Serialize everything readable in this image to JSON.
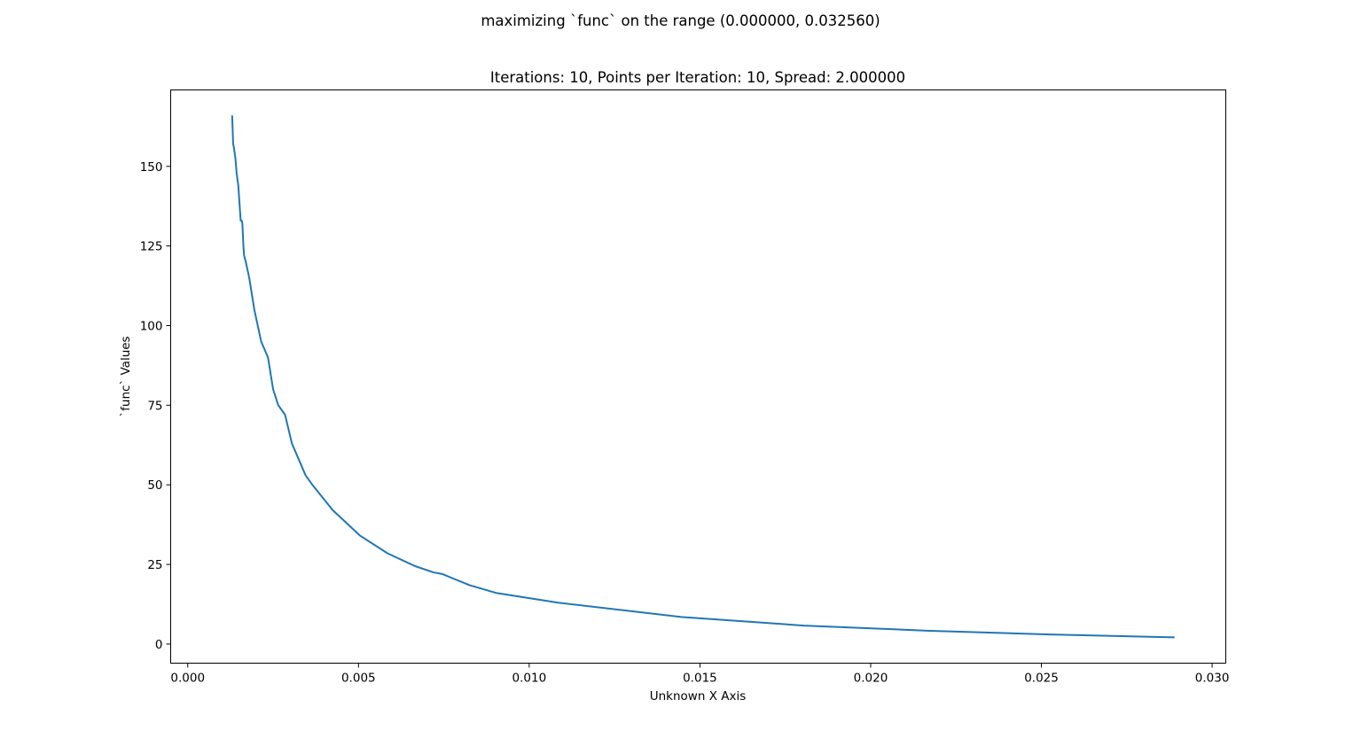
{
  "figure": {
    "suptitle": "maximizing `func` on the range (0.000000, 0.032560)"
  },
  "chart_data": {
    "type": "line",
    "title": "Iterations: 10, Points per Iteration: 10, Spread: 2.000000",
    "xlabel": "Unknown X Axis",
    "ylabel": "`func` Values",
    "xlim": [
      -0.0005,
      0.0304
    ],
    "ylim": [
      -6,
      174
    ],
    "xticks": [
      0.0,
      0.005,
      0.01,
      0.015,
      0.02,
      0.025,
      0.03
    ],
    "xtick_labels": [
      "0.000",
      "0.005",
      "0.010",
      "0.015",
      "0.020",
      "0.025",
      "0.030"
    ],
    "yticks": [
      0,
      25,
      50,
      75,
      100,
      125,
      150
    ],
    "ytick_labels": [
      "0",
      "25",
      "50",
      "75",
      "100",
      "125",
      "150"
    ],
    "grid": false,
    "line_color": "#1f77b4",
    "series": [
      {
        "x": [
          0.0013,
          0.00133,
          0.00135,
          0.00139,
          0.0014,
          0.00143,
          0.00148,
          0.00155,
          0.00158,
          0.0016,
          0.00163,
          0.00165,
          0.0017,
          0.0018,
          0.00195,
          0.00215,
          0.00235,
          0.0025,
          0.00265,
          0.00285,
          0.00305,
          0.00345,
          0.00365,
          0.00425,
          0.00505,
          0.00585,
          0.00665,
          0.0072,
          0.00745,
          0.00825,
          0.00905,
          0.01085,
          0.01445,
          0.01805,
          0.02165,
          0.02525,
          0.0289
        ],
        "y": [
          166,
          157,
          156,
          153,
          152,
          148,
          144,
          133,
          133,
          132,
          125,
          122,
          120,
          115,
          105,
          95,
          90,
          80,
          75,
          72,
          63,
          53,
          50,
          42,
          34,
          28.5,
          24.5,
          22.5,
          22,
          18.5,
          16,
          13,
          8.5,
          5.8,
          4.2,
          3.0,
          2.1
        ]
      }
    ]
  }
}
